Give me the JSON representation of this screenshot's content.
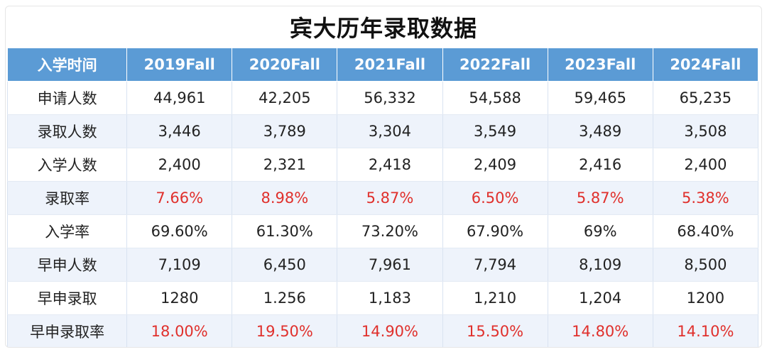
{
  "title": "宾大历年录取数据",
  "header": [
    "入学时间",
    "2019Fall",
    "2020Fall",
    "2021Fall",
    "2022Fall",
    "2023Fall",
    "2024Fall"
  ],
  "rows": [
    {
      "label": "申请人数",
      "values": [
        "44,961",
        "42,205",
        "56,332",
        "54,588",
        "59,465",
        "65,235"
      ],
      "highlight": false
    },
    {
      "label": "录取人数",
      "values": [
        "3,446",
        "3,789",
        "3,304",
        "3,549",
        "3,489",
        "3,508"
      ],
      "highlight": false
    },
    {
      "label": "入学人数",
      "values": [
        "2,400",
        "2,321",
        "2,418",
        "2,409",
        "2,416",
        "2,400"
      ],
      "highlight": false
    },
    {
      "label": "录取率",
      "values": [
        "7.66%",
        "8.98%",
        "5.87%",
        "6.50%",
        "5.87%",
        "5.38%"
      ],
      "highlight": true
    },
    {
      "label": "入学率",
      "values": [
        "69.60%",
        "61.30%",
        "73.20%",
        "67.90%",
        "69%",
        "68.40%"
      ],
      "highlight": false
    },
    {
      "label": "早申人数",
      "values": [
        "7,109",
        "6,450",
        "7,961",
        "7,794",
        "8,109",
        "8,500"
      ],
      "highlight": false
    },
    {
      "label": "早申录取",
      "values": [
        "1280",
        "1.256",
        "1,183",
        "1,210",
        "1,204",
        "1200"
      ],
      "highlight": false
    },
    {
      "label": "早申录取率",
      "values": [
        "18.00%",
        "19.50%",
        "14.90%",
        "15.50%",
        "14.80%",
        "14.10%"
      ],
      "highlight": true
    }
  ],
  "colors": {
    "header_bg": "#5b9bd5",
    "highlight_text": "#e0302c",
    "stripe": "#eef3fb"
  }
}
